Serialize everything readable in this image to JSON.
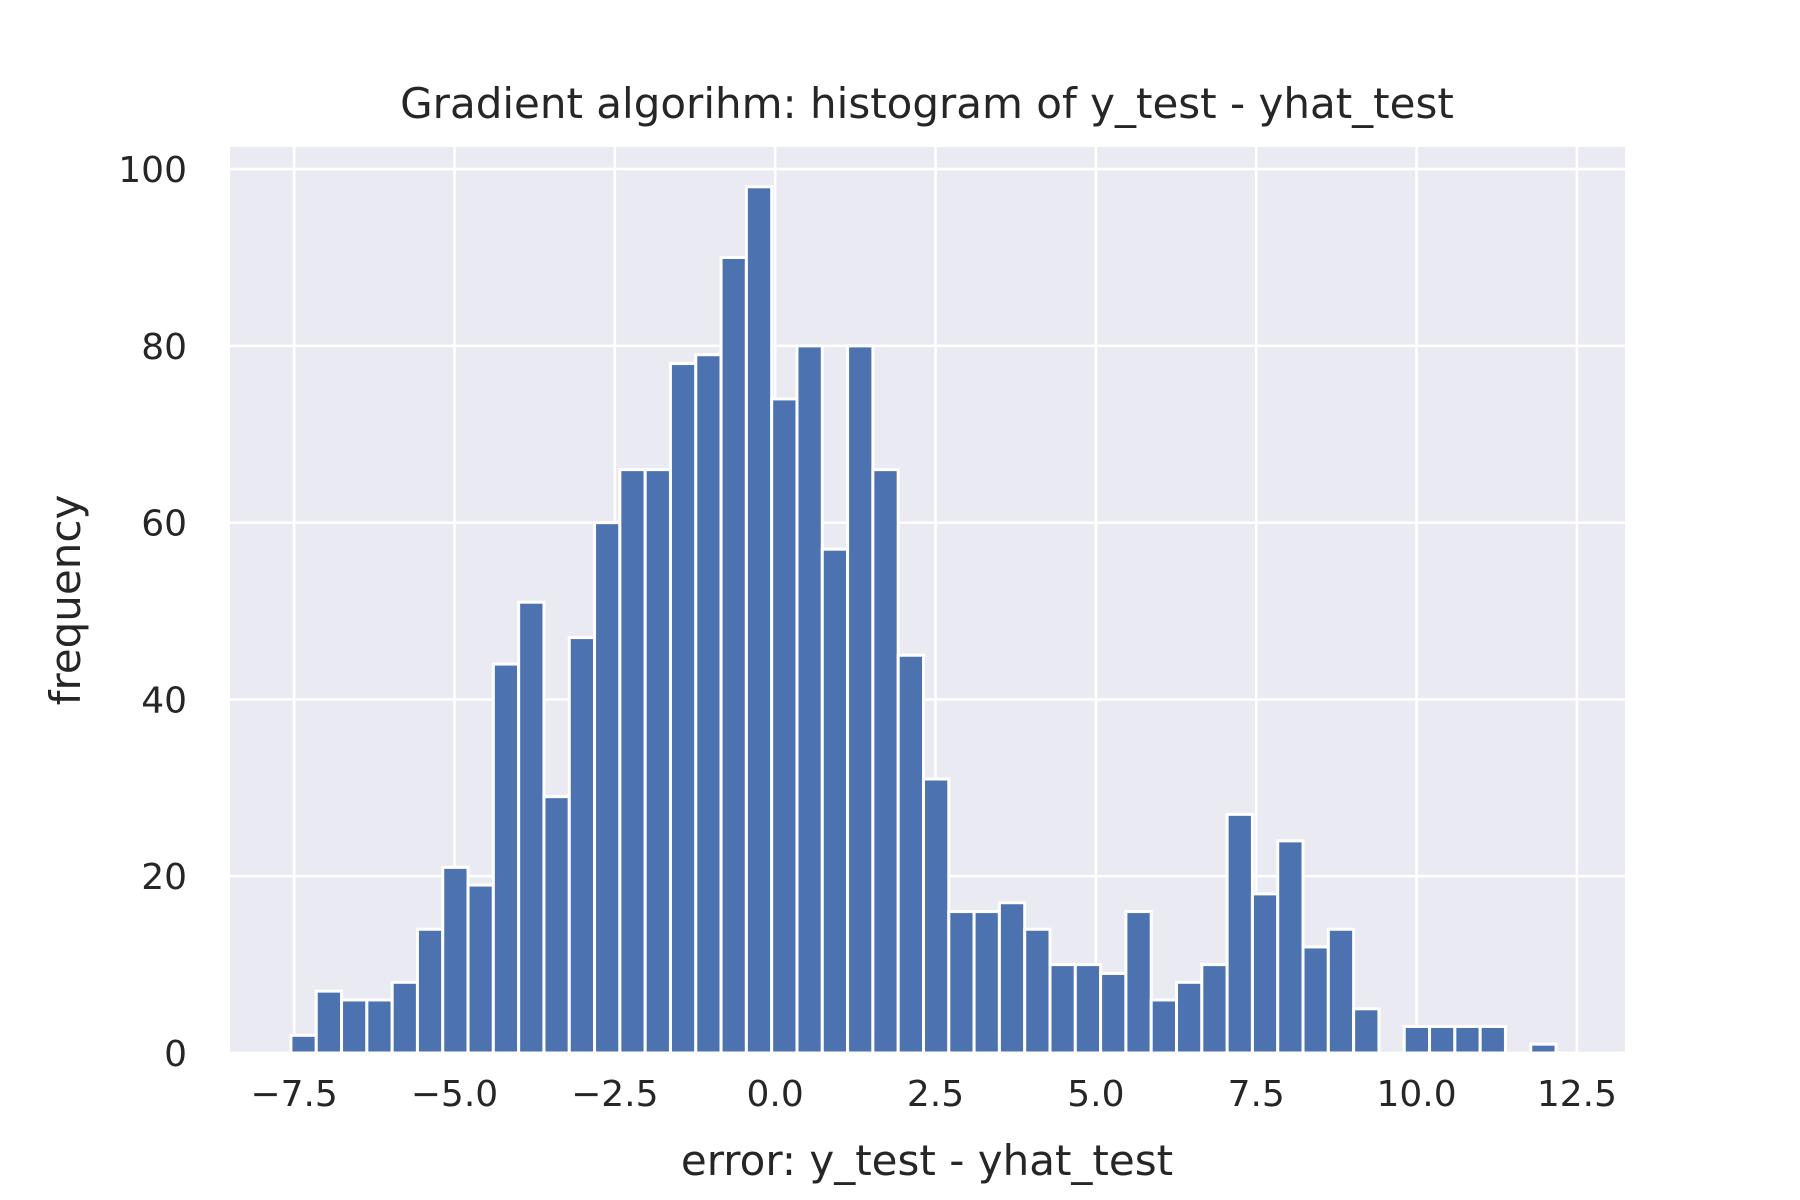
{
  "chart_data": {
    "type": "bar",
    "title": "Gradient algorihm: histogram of y_test - yhat_test",
    "xlabel": "error: y_test - yhat_test",
    "ylabel": "frequency",
    "xlim": [
      -8.5,
      13.25
    ],
    "ylim": [
      0,
      102.5
    ],
    "xticks": [
      -7.5,
      -5.0,
      -2.5,
      0.0,
      2.5,
      5.0,
      7.5,
      10.0,
      12.5
    ],
    "xtick_labels": [
      "−7.5",
      "−5.0",
      "−2.5",
      "0.0",
      "2.5",
      "5.0",
      "7.5",
      "10.0",
      "12.5"
    ],
    "yticks": [
      0,
      20,
      40,
      60,
      80,
      100
    ],
    "ytick_labels": [
      "0",
      "20",
      "40",
      "60",
      "80",
      "100"
    ],
    "bins": {
      "start": -7.55,
      "width": 0.3945
    },
    "values": [
      2,
      7,
      6,
      6,
      8,
      14,
      21,
      19,
      44,
      51,
      29,
      47,
      60,
      66,
      66,
      78,
      79,
      90,
      98,
      74,
      80,
      57,
      80,
      66,
      45,
      31,
      16,
      16,
      17,
      14,
      10,
      10,
      9,
      16,
      6,
      8,
      10,
      27,
      18,
      24,
      12,
      14,
      5,
      0,
      3,
      3,
      3,
      3,
      0,
      1
    ],
    "bar_color": "#4c72b0",
    "background_color": "#eaeaf2",
    "grid": true,
    "style": "seaborn darkgrid"
  }
}
